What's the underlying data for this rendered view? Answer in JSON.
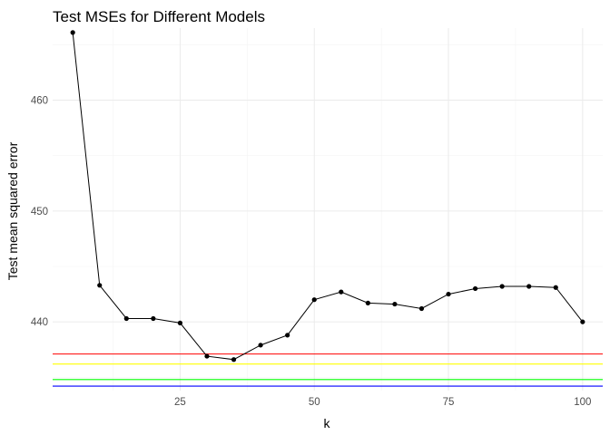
{
  "chart_data": {
    "type": "line",
    "title": "Test MSEs for Different Models",
    "xlabel": "k",
    "ylabel": "Test mean squared error",
    "xlim": [
      1.25,
      103.75
    ],
    "ylim": [
      433.8,
      466.5
    ],
    "x_ticks": [
      25,
      50,
      75,
      100
    ],
    "x_tick_labels": [
      "25",
      "50",
      "75",
      "100"
    ],
    "y_ticks": [
      440,
      450,
      460
    ],
    "y_tick_labels": [
      "440",
      "450",
      "460"
    ],
    "grid": true,
    "legend": "none",
    "series": [
      {
        "color": "#000000",
        "x": [
          5,
          10,
          15,
          20,
          25,
          30,
          35,
          40,
          45,
          50,
          55,
          60,
          65,
          70,
          75,
          80,
          85,
          90,
          95,
          100
        ],
        "y": [
          466.1,
          443.3,
          440.3,
          440.3,
          439.9,
          436.9,
          436.6,
          437.9,
          438.8,
          442.0,
          442.7,
          441.7,
          441.6,
          441.2,
          442.5,
          443.0,
          443.2,
          443.2,
          443.1,
          440.0
        ]
      }
    ],
    "hlines": [
      {
        "y": 437.1,
        "color": "#ff0000"
      },
      {
        "y": 436.2,
        "color": "#ffff00"
      },
      {
        "y": 434.8,
        "color": "#00ff00"
      },
      {
        "y": 434.2,
        "color": "#0000ff"
      }
    ]
  }
}
